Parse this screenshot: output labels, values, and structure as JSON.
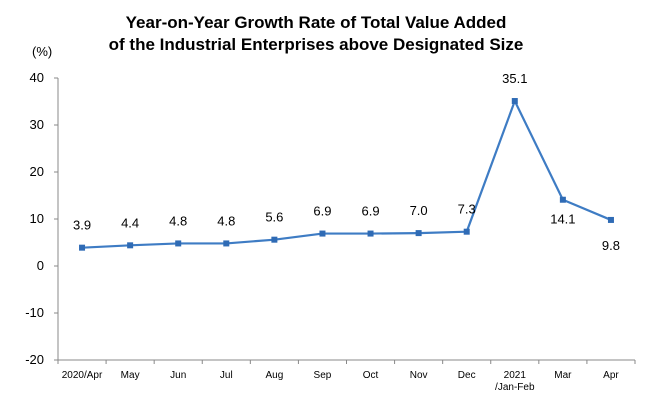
{
  "chart_data": {
    "type": "line",
    "title": "Year-on-Year Growth Rate of Total Value Added",
    "subtitle": "of the Industrial Enterprises above Designated Size",
    "ylabel": "(%)",
    "xlabel": "",
    "ylim": [
      -20,
      40
    ],
    "yticks": [
      "40",
      "30",
      "20",
      "10",
      "0",
      "-10",
      "-20"
    ],
    "ytick_values": [
      40,
      30,
      20,
      10,
      0,
      -10,
      -20
    ],
    "categories": [
      "2020/Apr",
      "May",
      "Jun",
      "Jul",
      "Aug",
      "Sep",
      "Oct",
      "Nov",
      "Dec",
      "2021",
      "Mar",
      "Apr"
    ],
    "category_sublabels": [
      "",
      "",
      "",
      "",
      "",
      "",
      "",
      "",
      "",
      "/Jan-Feb",
      "",
      ""
    ],
    "values": [
      3.9,
      4.4,
      4.8,
      4.8,
      5.6,
      6.9,
      6.9,
      7.0,
      7.3,
      35.1,
      14.1,
      9.8
    ],
    "data_labels": [
      "3.9",
      "4.4",
      "4.8",
      "4.8",
      "5.6",
      "6.9",
      "6.9",
      "7.0",
      "7.3",
      "35.1",
      "14.1",
      "9.8"
    ],
    "grid": false,
    "legend": "none",
    "line_color": "#3E7CC4",
    "marker_color": "#2F6BB5"
  }
}
